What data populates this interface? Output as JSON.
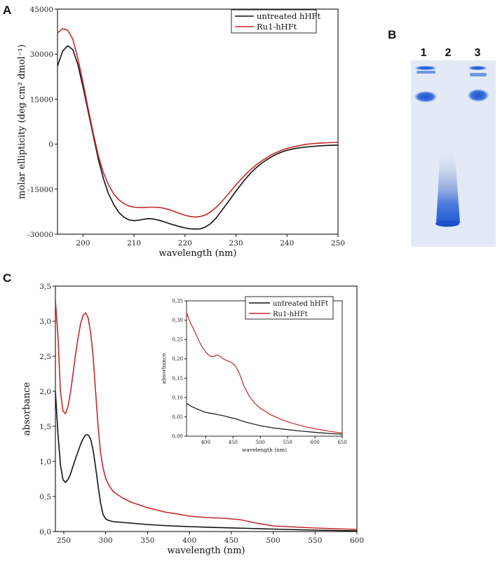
{
  "chart_data": [
    {
      "panel": "A",
      "type": "line",
      "xlabel": "wavelength (nm)",
      "ylabel": "molar ellipticity (deg cm² dmol⁻¹)",
      "xlim": [
        195,
        250
      ],
      "ylim": [
        -30000,
        45000
      ],
      "xticks": [
        "200",
        "210",
        "220",
        "230",
        "240",
        "250"
      ],
      "yticks": [
        "-30000",
        "-15000",
        "0",
        "15000",
        "30000",
        "45000"
      ],
      "legend": [
        "untreated hHFt",
        "Ru1-hHFt"
      ],
      "legend_position": "top-right",
      "series": [
        {
          "name": "untreated hHFt",
          "color": "#111111",
          "x": [
            195,
            196,
            197,
            198,
            199,
            200,
            201,
            202,
            203,
            204,
            205,
            206,
            207,
            208,
            209,
            210,
            211,
            212,
            213,
            214,
            215,
            216,
            217,
            218,
            219,
            220,
            221,
            222,
            223,
            224,
            225,
            226,
            227,
            228,
            229,
            230,
            231,
            232,
            233,
            234,
            235,
            236,
            237,
            238,
            239,
            240,
            242,
            244,
            246,
            248,
            250
          ],
          "y": [
            26000,
            31000,
            32800,
            31500,
            26500,
            19000,
            11000,
            3000,
            -5000,
            -11500,
            -16500,
            -20000,
            -22700,
            -24300,
            -25200,
            -25500,
            -25300,
            -25000,
            -24800,
            -25000,
            -25400,
            -25900,
            -26500,
            -27000,
            -27500,
            -27900,
            -28200,
            -28300,
            -28200,
            -27600,
            -26500,
            -24800,
            -22600,
            -20300,
            -18000,
            -15600,
            -13400,
            -11300,
            -9400,
            -7800,
            -6400,
            -5200,
            -4200,
            -3300,
            -2600,
            -2000,
            -1300,
            -900,
            -600,
            -400,
            -300
          ]
        },
        {
          "name": "Ru1-hHFt",
          "color": "#c62828",
          "x": [
            195,
            196,
            197,
            198,
            199,
            200,
            201,
            202,
            203,
            204,
            205,
            206,
            207,
            208,
            209,
            210,
            211,
            212,
            213,
            214,
            215,
            216,
            217,
            218,
            219,
            220,
            221,
            222,
            223,
            224,
            225,
            226,
            227,
            228,
            229,
            230,
            231,
            232,
            233,
            234,
            235,
            236,
            237,
            238,
            239,
            240,
            242,
            244,
            246,
            248,
            250
          ],
          "y": [
            37000,
            38500,
            38000,
            35000,
            28500,
            20500,
            12000,
            3800,
            -3800,
            -9500,
            -13500,
            -16500,
            -18500,
            -19800,
            -20600,
            -21000,
            -21100,
            -21100,
            -21000,
            -21000,
            -21100,
            -21400,
            -21900,
            -22500,
            -23100,
            -23700,
            -24100,
            -24300,
            -24100,
            -23600,
            -22600,
            -21200,
            -19500,
            -17600,
            -15600,
            -13600,
            -11700,
            -9900,
            -8300,
            -6900,
            -5600,
            -4500,
            -3500,
            -2700,
            -2000,
            -1400,
            -600,
            0,
            300,
            500,
            600
          ]
        }
      ]
    },
    {
      "panel": "B",
      "type": "gel",
      "lanes": [
        "1",
        "2",
        "3"
      ]
    },
    {
      "panel": "C",
      "type": "line",
      "xlabel": "wavelength (nm)",
      "ylabel": "absorbance",
      "xlim": [
        240,
        600
      ],
      "ylim": [
        0,
        3.5
      ],
      "xticks": [
        "250",
        "300",
        "350",
        "400",
        "450",
        "500",
        "550",
        "600"
      ],
      "yticks": [
        "0,0",
        "0,5",
        "1,0",
        "1,5",
        "2,0",
        "2,5",
        "3,0",
        "3,5"
      ],
      "legend": [
        "untreated hHFt",
        "Ru1-hHFt"
      ],
      "series": [
        {
          "name": "untreated hHFt",
          "color": "#111111",
          "x": [
            240,
            243,
            246,
            249,
            252,
            255,
            258,
            261,
            264,
            267,
            270,
            273,
            276,
            279,
            282,
            285,
            288,
            291,
            294,
            297,
            300,
            303,
            306,
            310,
            320,
            330,
            340,
            350,
            370,
            400,
            430,
            450,
            470,
            500,
            550,
            600
          ],
          "y": [
            2.0,
            1.4,
            0.95,
            0.74,
            0.7,
            0.74,
            0.82,
            0.93,
            1.04,
            1.14,
            1.24,
            1.32,
            1.38,
            1.38,
            1.32,
            1.16,
            0.92,
            0.65,
            0.4,
            0.24,
            0.18,
            0.16,
            0.15,
            0.14,
            0.13,
            0.12,
            0.11,
            0.1,
            0.085,
            0.07,
            0.058,
            0.052,
            0.045,
            0.035,
            0.02,
            0.01
          ]
        },
        {
          "name": "Ru1-hHFt",
          "color": "#c62828",
          "x": [
            240,
            243,
            246,
            249,
            252,
            255,
            258,
            261,
            264,
            267,
            270,
            273,
            276,
            279,
            282,
            285,
            288,
            291,
            294,
            297,
            300,
            303,
            306,
            310,
            320,
            330,
            340,
            350,
            370,
            400,
            420,
            440,
            460,
            480,
            500,
            550,
            600
          ],
          "y": [
            3.3,
            2.8,
            2.0,
            1.72,
            1.68,
            1.78,
            1.98,
            2.25,
            2.52,
            2.76,
            2.96,
            3.08,
            3.12,
            3.05,
            2.84,
            2.5,
            2.0,
            1.5,
            1.12,
            0.9,
            0.76,
            0.68,
            0.62,
            0.56,
            0.48,
            0.42,
            0.38,
            0.34,
            0.28,
            0.22,
            0.2,
            0.19,
            0.17,
            0.12,
            0.08,
            0.05,
            0.03
          ]
        }
      ],
      "inset": {
        "type": "line",
        "xlabel": "wavelength (nm)",
        "ylabel": "absorbance",
        "xlim": [
          365,
          650
        ],
        "ylim": [
          0,
          0.35
        ],
        "xticks": [
          "400",
          "450",
          "500",
          "550",
          "600",
          "650"
        ],
        "yticks": [
          "0,00",
          "0,05",
          "0,10",
          "0,15",
          "0,20",
          "0,25",
          "0,30",
          "0,35"
        ],
        "series": [
          {
            "name": "untreated hHFt",
            "color": "#111111",
            "x": [
              365,
              375,
              385,
              395,
              405,
              415,
              425,
              435,
              445,
              455,
              465,
              480,
              500,
              525,
              550,
              575,
              600,
              625,
              650
            ],
            "y": [
              0.085,
              0.076,
              0.07,
              0.064,
              0.06,
              0.058,
              0.055,
              0.052,
              0.048,
              0.045,
              0.04,
              0.034,
              0.027,
              0.021,
              0.017,
              0.013,
              0.01,
              0.007,
              0.005
            ]
          },
          {
            "name": "Ru1-hHFt",
            "color": "#c62828",
            "x": [
              365,
              370,
              375,
              380,
              385,
              390,
              395,
              400,
              405,
              410,
              415,
              420,
              425,
              430,
              435,
              440,
              445,
              450,
              455,
              460,
              465,
              470,
              480,
              490,
              500,
              520,
              540,
              560,
              580,
              600,
              625,
              650
            ],
            "y": [
              0.32,
              0.3,
              0.285,
              0.27,
              0.255,
              0.24,
              0.228,
              0.218,
              0.21,
              0.206,
              0.206,
              0.21,
              0.208,
              0.202,
              0.198,
              0.195,
              0.192,
              0.188,
              0.18,
              0.168,
              0.15,
              0.13,
              0.103,
              0.085,
              0.072,
              0.055,
              0.042,
              0.033,
              0.025,
              0.019,
              0.013,
              0.008
            ]
          }
        ]
      }
    }
  ]
}
